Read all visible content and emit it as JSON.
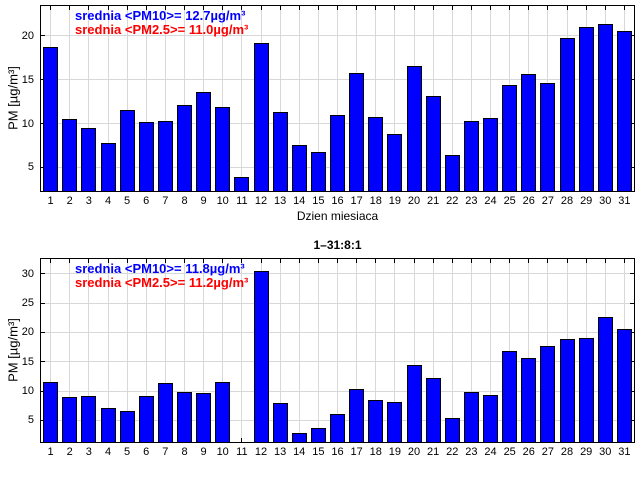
{
  "figure": {
    "background": "#ffffff",
    "bar_color": "#0000ff",
    "bar_edge_color": "#000000",
    "grid_color": "#d8d8d8"
  },
  "chart_data": [
    {
      "type": "bar",
      "title": "",
      "xlabel": "Dzien miesiaca",
      "ylabel": "PM [µg/m³]",
      "legend_position": "top-left",
      "grid": true,
      "legend": [
        {
          "text": "srednia <PM10>= 12.7µg/m³",
          "color": "#0000ff"
        },
        {
          "text": "srednia <PM2.5>= 11.0µg/m³",
          "color": "#ff0000"
        }
      ],
      "categories": [
        "1",
        "2",
        "3",
        "4",
        "5",
        "6",
        "7",
        "8",
        "9",
        "10",
        "11",
        "12",
        "13",
        "14",
        "15",
        "16",
        "17",
        "18",
        "19",
        "20",
        "21",
        "22",
        "23",
        "24",
        "25",
        "26",
        "27",
        "28",
        "29",
        "30",
        "31"
      ],
      "values": [
        18.7,
        10.5,
        9.5,
        7.8,
        11.6,
        10.2,
        10.3,
        12.1,
        13.6,
        11.9,
        3.9,
        19.2,
        11.3,
        7.6,
        6.7,
        11.0,
        15.8,
        10.8,
        8.8,
        16.6,
        13.1,
        6.4,
        10.3,
        10.6,
        14.4,
        15.6,
        14.6,
        19.8,
        21.0,
        21.4,
        20.6
      ],
      "yticks": [
        5,
        10,
        15,
        20
      ],
      "ylim": [
        2.3,
        23.4
      ]
    },
    {
      "type": "bar",
      "title": "1–31:8:1",
      "xlabel": "",
      "ylabel": "PM [µg/m³]",
      "legend_position": "top-left",
      "grid": true,
      "legend": [
        {
          "text": "srednia <PM10>= 11.8µg/m³",
          "color": "#0000ff"
        },
        {
          "text": "srednia <PM2.5>= 11.2µg/m³",
          "color": "#ff0000"
        }
      ],
      "categories": [
        "1",
        "2",
        "3",
        "4",
        "5",
        "6",
        "7",
        "8",
        "9",
        "10",
        "11",
        "12",
        "13",
        "14",
        "15",
        "16",
        "17",
        "18",
        "19",
        "20",
        "21",
        "22",
        "23",
        "24",
        "25",
        "26",
        "27",
        "28",
        "29",
        "30",
        "31"
      ],
      "values": [
        11.6,
        8.9,
        9.1,
        7.1,
        6.6,
        9.1,
        11.3,
        9.8,
        9.6,
        11.5,
        null,
        30.5,
        7.9,
        2.8,
        3.7,
        6.0,
        10.3,
        8.4,
        8.1,
        14.5,
        12.3,
        5.4,
        9.8,
        9.3,
        16.9,
        15.7,
        17.6,
        18.9,
        19.1,
        22.7,
        20.6
      ],
      "yticks": [
        5,
        10,
        15,
        20,
        25,
        30
      ],
      "ylim": [
        1.3,
        32.5
      ]
    }
  ]
}
